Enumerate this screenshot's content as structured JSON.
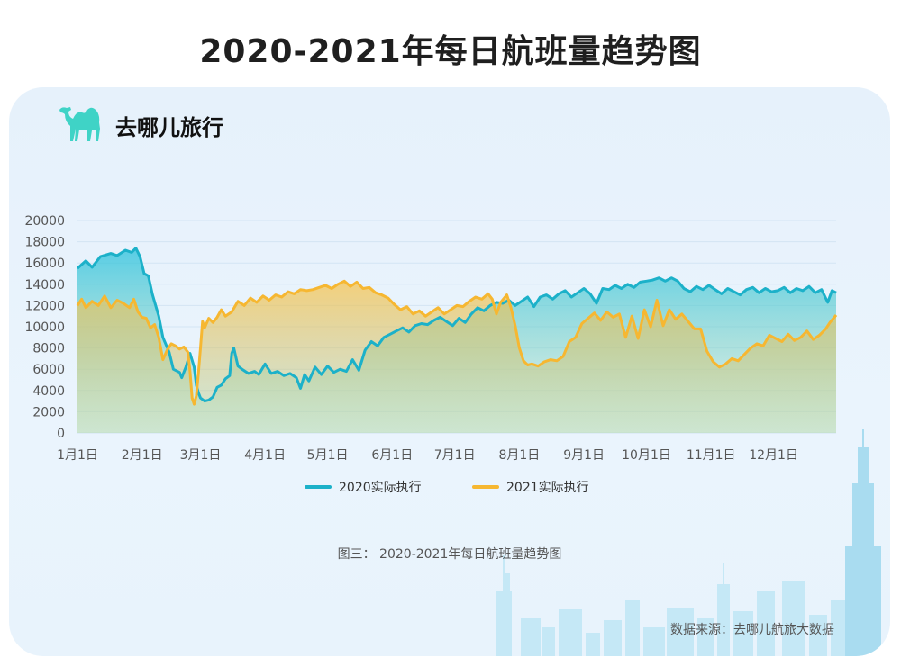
{
  "page": {
    "title": "2020-2021年每日航班量趋势图",
    "brand_name": "去哪儿旅行",
    "caption": "图三： 2020-2021年每日航班量趋势图",
    "source": "数据来源：去哪儿航旅大数据",
    "brand_color": "#3fd3c6"
  },
  "chart_data": {
    "type": "area",
    "title": "2020-2021年每日航班量趋势图",
    "xlabel": "",
    "ylabel": "",
    "x_unit": "day of year",
    "xlim": [
      1,
      365
    ],
    "ylim": [
      0,
      20000
    ],
    "yticks": [
      0,
      2000,
      4000,
      6000,
      8000,
      10000,
      12000,
      14000,
      16000,
      18000,
      20000
    ],
    "xticks": [
      {
        "label": "1月1日",
        "x": 1
      },
      {
        "label": "2月1日",
        "x": 32
      },
      {
        "label": "3月1日",
        "x": 60
      },
      {
        "label": "4月1日",
        "x": 91
      },
      {
        "label": "5月1日",
        "x": 121
      },
      {
        "label": "6月1日",
        "x": 152
      },
      {
        "label": "7月1日",
        "x": 182
      },
      {
        "label": "8月1日",
        "x": 213
      },
      {
        "label": "9月1日",
        "x": 244
      },
      {
        "label": "10月1日",
        "x": 274
      },
      {
        "label": "11月1日",
        "x": 305
      },
      {
        "label": "12月1日",
        "x": 335
      }
    ],
    "grid": true,
    "legend_position": "bottom",
    "series": [
      {
        "name": "2020实际执行",
        "color": "#1cb1c9",
        "points": [
          [
            1,
            15500
          ],
          [
            5,
            16200
          ],
          [
            8,
            15600
          ],
          [
            12,
            16600
          ],
          [
            17,
            16900
          ],
          [
            20,
            16700
          ],
          [
            24,
            17200
          ],
          [
            27,
            17000
          ],
          [
            29,
            17400
          ],
          [
            31,
            16600
          ],
          [
            33,
            15000
          ],
          [
            35,
            14800
          ],
          [
            37,
            13000
          ],
          [
            40,
            11000
          ],
          [
            42,
            9000
          ],
          [
            45,
            7600
          ],
          [
            47,
            6000
          ],
          [
            50,
            5700
          ],
          [
            51,
            5200
          ],
          [
            53,
            6200
          ],
          [
            55,
            7500
          ],
          [
            57,
            6200
          ],
          [
            58,
            4500
          ],
          [
            59,
            3800
          ],
          [
            60,
            3300
          ],
          [
            62,
            3000
          ],
          [
            64,
            3100
          ],
          [
            66,
            3400
          ],
          [
            68,
            4300
          ],
          [
            70,
            4500
          ],
          [
            72,
            5100
          ],
          [
            74,
            5400
          ],
          [
            75,
            7500
          ],
          [
            76,
            8000
          ],
          [
            78,
            6300
          ],
          [
            80,
            6000
          ],
          [
            83,
            5600
          ],
          [
            86,
            5800
          ],
          [
            88,
            5500
          ],
          [
            91,
            6500
          ],
          [
            94,
            5600
          ],
          [
            97,
            5800
          ],
          [
            100,
            5400
          ],
          [
            103,
            5600
          ],
          [
            106,
            5200
          ],
          [
            108,
            4200
          ],
          [
            110,
            5500
          ],
          [
            112,
            4900
          ],
          [
            115,
            6200
          ],
          [
            118,
            5500
          ],
          [
            121,
            6300
          ],
          [
            124,
            5700
          ],
          [
            127,
            6000
          ],
          [
            130,
            5800
          ],
          [
            133,
            6900
          ],
          [
            136,
            5900
          ],
          [
            139,
            7800
          ],
          [
            142,
            8600
          ],
          [
            145,
            8200
          ],
          [
            148,
            9000
          ],
          [
            151,
            9300
          ],
          [
            154,
            9600
          ],
          [
            157,
            9900
          ],
          [
            160,
            9500
          ],
          [
            163,
            10100
          ],
          [
            166,
            10300
          ],
          [
            169,
            10200
          ],
          [
            172,
            10600
          ],
          [
            175,
            10900
          ],
          [
            178,
            10500
          ],
          [
            181,
            10100
          ],
          [
            184,
            10800
          ],
          [
            187,
            10400
          ],
          [
            190,
            11200
          ],
          [
            193,
            11800
          ],
          [
            196,
            11500
          ],
          [
            199,
            12000
          ],
          [
            202,
            12300
          ],
          [
            205,
            12200
          ],
          [
            208,
            12500
          ],
          [
            211,
            12000
          ],
          [
            214,
            12400
          ],
          [
            217,
            12800
          ],
          [
            220,
            11900
          ],
          [
            223,
            12800
          ],
          [
            226,
            13000
          ],
          [
            229,
            12600
          ],
          [
            232,
            13100
          ],
          [
            235,
            13400
          ],
          [
            238,
            12800
          ],
          [
            241,
            13200
          ],
          [
            244,
            13600
          ],
          [
            247,
            13100
          ],
          [
            250,
            12200
          ],
          [
            253,
            13600
          ],
          [
            256,
            13500
          ],
          [
            259,
            13900
          ],
          [
            262,
            13600
          ],
          [
            265,
            14000
          ],
          [
            268,
            13700
          ],
          [
            271,
            14200
          ],
          [
            274,
            14300
          ],
          [
            277,
            14400
          ],
          [
            280,
            14600
          ],
          [
            283,
            14300
          ],
          [
            286,
            14600
          ],
          [
            289,
            14300
          ],
          [
            292,
            13600
          ],
          [
            295,
            13300
          ],
          [
            298,
            13800
          ],
          [
            301,
            13500
          ],
          [
            304,
            13900
          ],
          [
            307,
            13500
          ],
          [
            310,
            13100
          ],
          [
            313,
            13600
          ],
          [
            316,
            13300
          ],
          [
            319,
            13000
          ],
          [
            322,
            13500
          ],
          [
            325,
            13700
          ],
          [
            328,
            13200
          ],
          [
            331,
            13600
          ],
          [
            334,
            13300
          ],
          [
            337,
            13400
          ],
          [
            340,
            13700
          ],
          [
            343,
            13200
          ],
          [
            346,
            13600
          ],
          [
            349,
            13400
          ],
          [
            352,
            13800
          ],
          [
            355,
            13200
          ],
          [
            358,
            13500
          ],
          [
            361,
            12300
          ],
          [
            363,
            13400
          ],
          [
            365,
            13200
          ]
        ]
      },
      {
        "name": "2021实际执行",
        "color": "#f6b731",
        "points": [
          [
            1,
            12000
          ],
          [
            3,
            12600
          ],
          [
            5,
            11800
          ],
          [
            8,
            12400
          ],
          [
            11,
            12000
          ],
          [
            14,
            12900
          ],
          [
            17,
            11800
          ],
          [
            20,
            12500
          ],
          [
            23,
            12200
          ],
          [
            26,
            11800
          ],
          [
            28,
            12600
          ],
          [
            30,
            11400
          ],
          [
            32,
            10900
          ],
          [
            34,
            10800
          ],
          [
            36,
            9900
          ],
          [
            38,
            10200
          ],
          [
            40,
            9000
          ],
          [
            42,
            6900
          ],
          [
            44,
            7800
          ],
          [
            46,
            8400
          ],
          [
            48,
            8200
          ],
          [
            50,
            7900
          ],
          [
            52,
            8100
          ],
          [
            54,
            7600
          ],
          [
            55,
            5800
          ],
          [
            56,
            3300
          ],
          [
            57,
            2700
          ],
          [
            58,
            3500
          ],
          [
            59,
            5600
          ],
          [
            60,
            8000
          ],
          [
            61,
            10500
          ],
          [
            62,
            9900
          ],
          [
            64,
            10800
          ],
          [
            66,
            10400
          ],
          [
            68,
            10900
          ],
          [
            70,
            11600
          ],
          [
            72,
            11000
          ],
          [
            75,
            11400
          ],
          [
            78,
            12400
          ],
          [
            81,
            12000
          ],
          [
            84,
            12700
          ],
          [
            87,
            12300
          ],
          [
            90,
            12900
          ],
          [
            93,
            12500
          ],
          [
            96,
            13000
          ],
          [
            99,
            12800
          ],
          [
            102,
            13300
          ],
          [
            105,
            13100
          ],
          [
            108,
            13500
          ],
          [
            111,
            13400
          ],
          [
            114,
            13500
          ],
          [
            117,
            13700
          ],
          [
            120,
            13900
          ],
          [
            123,
            13600
          ],
          [
            126,
            14000
          ],
          [
            129,
            14300
          ],
          [
            132,
            13800
          ],
          [
            135,
            14200
          ],
          [
            138,
            13600
          ],
          [
            141,
            13700
          ],
          [
            144,
            13200
          ],
          [
            147,
            13000
          ],
          [
            150,
            12700
          ],
          [
            153,
            12100
          ],
          [
            156,
            11600
          ],
          [
            159,
            11900
          ],
          [
            162,
            11200
          ],
          [
            165,
            11500
          ],
          [
            168,
            11000
          ],
          [
            171,
            11400
          ],
          [
            174,
            11800
          ],
          [
            177,
            11200
          ],
          [
            180,
            11600
          ],
          [
            183,
            12000
          ],
          [
            186,
            11900
          ],
          [
            189,
            12400
          ],
          [
            192,
            12800
          ],
          [
            195,
            12600
          ],
          [
            198,
            13100
          ],
          [
            200,
            12600
          ],
          [
            202,
            11200
          ],
          [
            204,
            12300
          ],
          [
            207,
            13000
          ],
          [
            209,
            11800
          ],
          [
            211,
            10100
          ],
          [
            213,
            8000
          ],
          [
            215,
            6800
          ],
          [
            217,
            6400
          ],
          [
            219,
            6500
          ],
          [
            222,
            6300
          ],
          [
            225,
            6700
          ],
          [
            228,
            6900
          ],
          [
            231,
            6800
          ],
          [
            234,
            7200
          ],
          [
            237,
            8600
          ],
          [
            240,
            9000
          ],
          [
            243,
            10300
          ],
          [
            246,
            10800
          ],
          [
            249,
            11300
          ],
          [
            252,
            10600
          ],
          [
            255,
            11400
          ],
          [
            258,
            10900
          ],
          [
            261,
            11200
          ],
          [
            264,
            9000
          ],
          [
            267,
            11000
          ],
          [
            270,
            8900
          ],
          [
            273,
            11600
          ],
          [
            276,
            10000
          ],
          [
            279,
            12500
          ],
          [
            282,
            10100
          ],
          [
            285,
            11600
          ],
          [
            288,
            10700
          ],
          [
            291,
            11200
          ],
          [
            294,
            10500
          ],
          [
            297,
            9800
          ],
          [
            300,
            9800
          ],
          [
            303,
            7700
          ],
          [
            306,
            6700
          ],
          [
            309,
            6200
          ],
          [
            312,
            6500
          ],
          [
            315,
            7000
          ],
          [
            318,
            6800
          ],
          [
            321,
            7400
          ],
          [
            324,
            8000
          ],
          [
            327,
            8400
          ],
          [
            330,
            8200
          ],
          [
            333,
            9200
          ],
          [
            336,
            8900
          ],
          [
            339,
            8600
          ],
          [
            342,
            9300
          ],
          [
            345,
            8700
          ],
          [
            348,
            9000
          ],
          [
            351,
            9600
          ],
          [
            354,
            8800
          ],
          [
            357,
            9200
          ],
          [
            360,
            9800
          ],
          [
            362,
            10400
          ],
          [
            365,
            11100
          ]
        ]
      }
    ]
  }
}
